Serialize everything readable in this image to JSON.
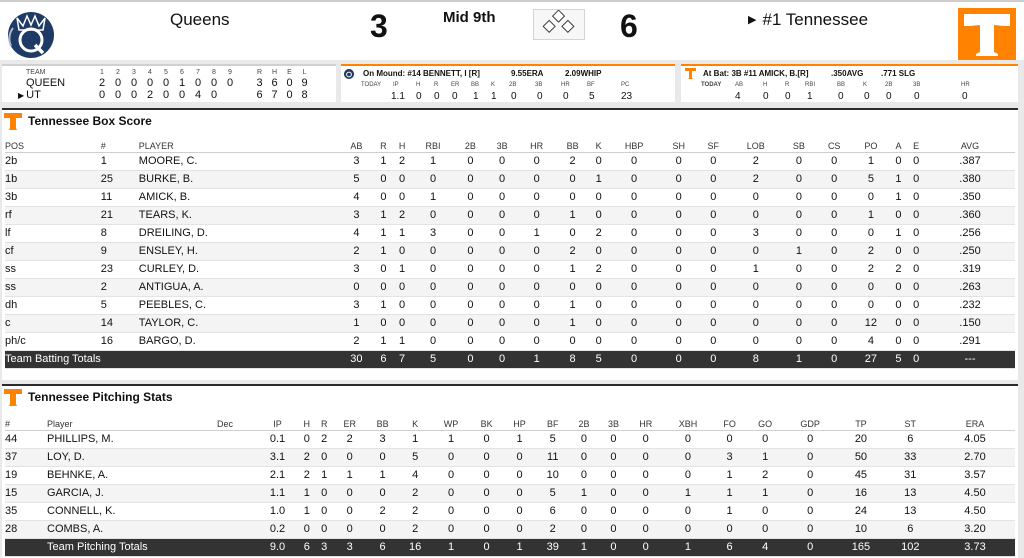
{
  "scoreboard": {
    "away_name": "Queens",
    "away_score": "3",
    "inning": "Mid 9th",
    "home_score": "6",
    "home_name": "#1 Tennessee"
  },
  "linescore": {
    "headers": [
      "TEAM",
      "1",
      "2",
      "3",
      "4",
      "5",
      "6",
      "7",
      "8",
      "9",
      "R",
      "H",
      "E",
      "L"
    ],
    "rows": [
      {
        "team": "QUEEN",
        "batting": false,
        "innings": [
          "2",
          "0",
          "0",
          "0",
          "0",
          "1",
          "0",
          "0",
          "0"
        ],
        "r": "3",
        "h": "6",
        "e": "0",
        "l": "9"
      },
      {
        "team": "UT",
        "batting": true,
        "innings": [
          "0",
          "0",
          "0",
          "2",
          "0",
          "0",
          "4",
          "0",
          ""
        ],
        "r": "6",
        "h": "7",
        "e": "0",
        "l": "8"
      }
    ]
  },
  "pitcher": {
    "label": "On Mound: #14 BENNETT, I [R]",
    "era": "9.55ERA",
    "whip": "2.09WHIP",
    "headers": [
      "TODAY",
      "IP",
      "H",
      "R",
      "ER",
      "BB",
      "K",
      "2B",
      "3B",
      "HR",
      "BF",
      "PC"
    ],
    "values": [
      "",
      "1.1",
      "0",
      "0",
      "0",
      "1",
      "1",
      "0",
      "0",
      "0",
      "5",
      "23"
    ]
  },
  "batter": {
    "label": "At Bat: 3B #11 AMICK, B.[R]",
    "avg": ".350AVG",
    "slg": ".771 SLG",
    "headers": [
      "TODAY",
      "AB",
      "H",
      "R",
      "RBI",
      "BB",
      "K",
      "2B",
      "3B",
      "HR"
    ],
    "values": [
      "",
      "4",
      "0",
      "0",
      "1",
      "0",
      "0",
      "0",
      "0",
      "0"
    ]
  },
  "box_score": {
    "title": "Tennessee Box Score",
    "headers": [
      "POS",
      "#",
      "PLAYER",
      "AB",
      "R",
      "H",
      "RBI",
      "2B",
      "3B",
      "HR",
      "BB",
      "K",
      "HBP",
      "SH",
      "SF",
      "LOB",
      "SB",
      "CS",
      "PO",
      "A",
      "E",
      "AVG"
    ],
    "rows": [
      [
        "2b",
        "1",
        "MOORE, C.",
        "3",
        "1",
        "2",
        "1",
        "0",
        "0",
        "0",
        "2",
        "0",
        "0",
        "0",
        "0",
        "2",
        "0",
        "0",
        "1",
        "0",
        "0",
        ".387"
      ],
      [
        "1b",
        "25",
        "BURKE, B.",
        "5",
        "0",
        "0",
        "0",
        "0",
        "0",
        "0",
        "0",
        "1",
        "0",
        "0",
        "0",
        "2",
        "0",
        "0",
        "5",
        "1",
        "0",
        ".380"
      ],
      [
        "3b",
        "11",
        "AMICK, B.",
        "4",
        "0",
        "0",
        "1",
        "0",
        "0",
        "0",
        "0",
        "0",
        "0",
        "0",
        "0",
        "0",
        "0",
        "0",
        "0",
        "1",
        "0",
        ".350"
      ],
      [
        "rf",
        "21",
        "TEARS, K.",
        "3",
        "1",
        "2",
        "0",
        "0",
        "0",
        "0",
        "1",
        "0",
        "0",
        "0",
        "0",
        "0",
        "0",
        "0",
        "1",
        "0",
        "0",
        ".360"
      ],
      [
        "lf",
        "8",
        "DREILING, D.",
        "4",
        "1",
        "1",
        "3",
        "0",
        "0",
        "1",
        "0",
        "2",
        "0",
        "0",
        "0",
        "3",
        "0",
        "0",
        "0",
        "1",
        "0",
        ".256"
      ],
      [
        "cf",
        "9",
        "ENSLEY, H.",
        "2",
        "1",
        "0",
        "0",
        "0",
        "0",
        "0",
        "2",
        "0",
        "0",
        "0",
        "0",
        "0",
        "1",
        "0",
        "2",
        "0",
        "0",
        ".250"
      ],
      [
        "ss",
        "23",
        "CURLEY, D.",
        "3",
        "0",
        "1",
        "0",
        "0",
        "0",
        "0",
        "1",
        "2",
        "0",
        "0",
        "0",
        "1",
        "0",
        "0",
        "2",
        "2",
        "0",
        ".319"
      ],
      [
        "ss",
        "2",
        "ANTIGUA, A.",
        "0",
        "0",
        "0",
        "0",
        "0",
        "0",
        "0",
        "0",
        "0",
        "0",
        "0",
        "0",
        "0",
        "0",
        "0",
        "0",
        "0",
        "0",
        ".263"
      ],
      [
        "dh",
        "5",
        "PEEBLES, C.",
        "3",
        "1",
        "0",
        "0",
        "0",
        "0",
        "0",
        "1",
        "0",
        "0",
        "0",
        "0",
        "0",
        "0",
        "0",
        "0",
        "0",
        "0",
        ".232"
      ],
      [
        "c",
        "14",
        "TAYLOR, C.",
        "1",
        "0",
        "0",
        "0",
        "0",
        "0",
        "0",
        "1",
        "0",
        "0",
        "0",
        "0",
        "0",
        "0",
        "0",
        "12",
        "0",
        "0",
        ".150"
      ],
      [
        "ph/c",
        "16",
        "BARGO, D.",
        "2",
        "1",
        "1",
        "0",
        "0",
        "0",
        "0",
        "0",
        "0",
        "0",
        "0",
        "0",
        "0",
        "0",
        "0",
        "4",
        "0",
        "0",
        ".291"
      ]
    ],
    "totals": [
      "Team Batting Totals",
      "",
      "",
      "30",
      "6",
      "7",
      "5",
      "0",
      "0",
      "1",
      "8",
      "5",
      "0",
      "0",
      "0",
      "8",
      "1",
      "0",
      "27",
      "5",
      "0",
      "---"
    ]
  },
  "pitching": {
    "title": "Tennessee Pitching Stats",
    "headers": [
      "#",
      "Player",
      "Dec",
      "IP",
      "H",
      "R",
      "ER",
      "BB",
      "K",
      "WP",
      "BK",
      "HP",
      "BF",
      "2B",
      "3B",
      "HR",
      "XBH",
      "FO",
      "GO",
      "GDP",
      "TP",
      "ST",
      "ERA"
    ],
    "rows": [
      [
        "44",
        "PHILLIPS, M.",
        "",
        "0.1",
        "0",
        "2",
        "2",
        "3",
        "1",
        "1",
        "0",
        "1",
        "5",
        "0",
        "0",
        "0",
        "0",
        "0",
        "0",
        "0",
        "20",
        "6",
        "4.05"
      ],
      [
        "37",
        "LOY, D.",
        "",
        "3.1",
        "2",
        "0",
        "0",
        "0",
        "5",
        "0",
        "0",
        "0",
        "11",
        "0",
        "0",
        "0",
        "0",
        "3",
        "1",
        "0",
        "50",
        "33",
        "2.70"
      ],
      [
        "19",
        "BEHNKE, A.",
        "",
        "2.1",
        "2",
        "1",
        "1",
        "1",
        "4",
        "0",
        "0",
        "0",
        "10",
        "0",
        "0",
        "0",
        "0",
        "1",
        "2",
        "0",
        "45",
        "31",
        "3.57"
      ],
      [
        "15",
        "GARCIA, J.",
        "",
        "1.1",
        "1",
        "0",
        "0",
        "0",
        "2",
        "0",
        "0",
        "0",
        "5",
        "1",
        "0",
        "0",
        "1",
        "1",
        "1",
        "0",
        "16",
        "13",
        "4.50"
      ],
      [
        "35",
        "CONNELL, K.",
        "",
        "1.0",
        "1",
        "0",
        "0",
        "2",
        "2",
        "0",
        "0",
        "0",
        "6",
        "0",
        "0",
        "0",
        "0",
        "1",
        "0",
        "0",
        "24",
        "13",
        "4.50"
      ],
      [
        "28",
        "COMBS, A.",
        "",
        "0.2",
        "0",
        "0",
        "0",
        "0",
        "2",
        "0",
        "0",
        "0",
        "2",
        "0",
        "0",
        "0",
        "0",
        "0",
        "0",
        "0",
        "10",
        "6",
        "3.20"
      ]
    ],
    "totals": [
      "",
      "Team Pitching Totals",
      "",
      "9.0",
      "6",
      "3",
      "3",
      "6",
      "16",
      "1",
      "0",
      "1",
      "39",
      "1",
      "0",
      "0",
      "1",
      "6",
      "4",
      "0",
      "165",
      "102",
      "3.73"
    ]
  },
  "colors": {
    "ut_orange": "#ff8200",
    "queens_navy": "#1f3a64",
    "totals_bg": "#333333"
  },
  "icons": {
    "away_logo": "queens-royals-logo",
    "home_logo": "tennessee-power-t-logo",
    "diamond": "base-diamond-icon"
  }
}
